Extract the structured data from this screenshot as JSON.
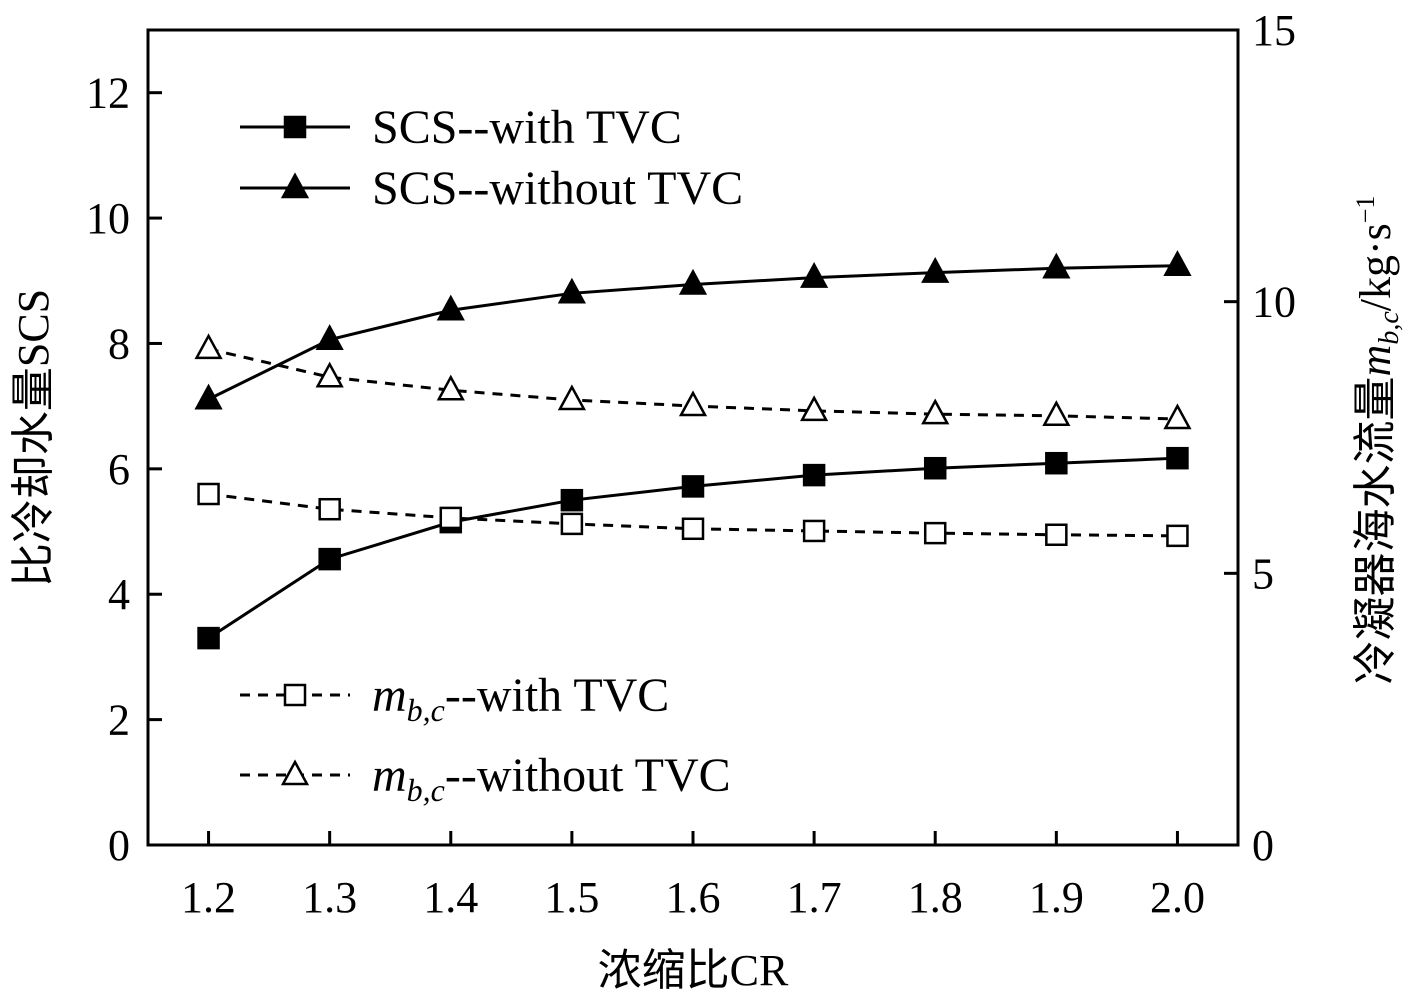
{
  "chart_data": {
    "type": "line",
    "title": "",
    "xlabel": "浓缩比CR",
    "ylabel": "比冷却水量SCS",
    "ylabel_right": {
      "main": "冷凝器海水流量",
      "var": "m",
      "sub": "b,c",
      "unit": "/kg·s",
      "sup": "−1"
    },
    "x": [
      1.2,
      1.3,
      1.4,
      1.5,
      1.6,
      1.7,
      1.8,
      1.9,
      2.0
    ],
    "x_tick_labels": [
      "1.2",
      "1.3",
      "1.4",
      "1.5",
      "1.6",
      "1.7",
      "1.8",
      "1.9",
      "2.0"
    ],
    "xlim": [
      1.15,
      2.05
    ],
    "ylim": [
      0,
      13
    ],
    "ylim_right": [
      0,
      15
    ],
    "y_ticks": [
      "0",
      "2",
      "4",
      "6",
      "8",
      "10",
      "12"
    ],
    "y_ticks_right": [
      "0",
      "5",
      "10",
      "15"
    ],
    "grid": false,
    "series": [
      {
        "name": "SCS--with TVC",
        "axis": "left",
        "marker": "square-filled",
        "line": "solid",
        "values": [
          3.3,
          4.56,
          5.15,
          5.5,
          5.72,
          5.9,
          6.01,
          6.09,
          6.17
        ]
      },
      {
        "name": "SCS--without TVC",
        "axis": "left",
        "marker": "triangle-filled",
        "line": "solid",
        "values": [
          7.11,
          8.06,
          8.53,
          8.8,
          8.94,
          9.05,
          9.13,
          9.2,
          9.24
        ]
      },
      {
        "name": "--with TVC",
        "var": "m",
        "sub": "b,c",
        "axis": "right",
        "marker": "square-open",
        "line": "dashed",
        "values": [
          6.46,
          6.18,
          6.02,
          5.91,
          5.82,
          5.78,
          5.74,
          5.71,
          5.69
        ]
      },
      {
        "name": "--without TVC",
        "var": "m",
        "sub": "b,c",
        "axis": "right",
        "marker": "triangle-open",
        "line": "dashed",
        "values": [
          9.13,
          8.61,
          8.37,
          8.19,
          8.08,
          7.99,
          7.93,
          7.9,
          7.84
        ]
      }
    ],
    "legend_placement": "top-left and bottom-left"
  }
}
